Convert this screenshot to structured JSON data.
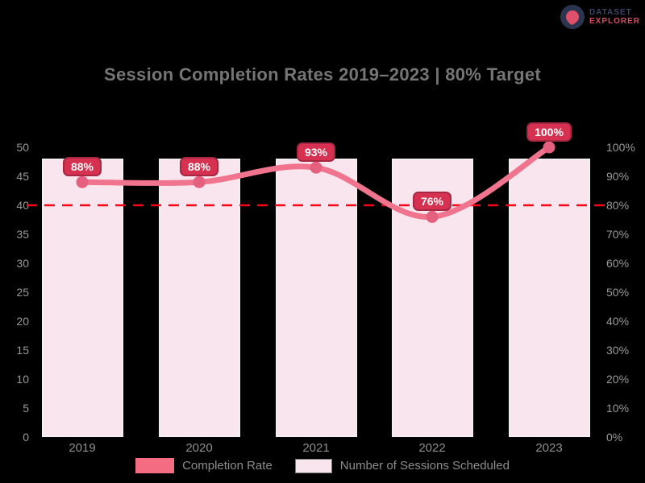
{
  "brand": {
    "line1": "DATASET",
    "line2": "EXPLORER"
  },
  "chart_data": {
    "type": "bar+line",
    "title": "Session Completion Rates 2019–2023 | 80% Target",
    "categories": [
      "2019",
      "2020",
      "2021",
      "2022",
      "2023"
    ],
    "series": [
      {
        "name": "Number of Sessions Scheduled",
        "type": "bar",
        "axis": "left",
        "values": [
          48,
          48,
          48,
          48,
          48
        ],
        "color": "#f9e5ed"
      },
      {
        "name": "Completion Rate",
        "type": "line",
        "axis": "right",
        "values": [
          88,
          88,
          93,
          76,
          100
        ],
        "labels": [
          "88%",
          "88%",
          "93%",
          "76%",
          "100%"
        ],
        "color": "#f1748e",
        "marker_color": "#e4607e"
      }
    ],
    "target_line": {
      "value": 80,
      "axis": "right",
      "color": "#ff0015",
      "style": "dashed"
    },
    "left_axis": {
      "min": 0,
      "max": 50,
      "step": 5,
      "ticks": [
        "50",
        "45",
        "40",
        "35",
        "30",
        "25",
        "20",
        "15",
        "10",
        "5",
        "0"
      ]
    },
    "right_axis": {
      "min": 0,
      "max": 100,
      "step": 10,
      "ticks": [
        "100%",
        "90%",
        "80%",
        "70%",
        "60%",
        "50%",
        "40%",
        "30%",
        "20%",
        "10%",
        "0%"
      ]
    },
    "legend_position": "bottom",
    "grid": false,
    "badge_color": "#d63150",
    "badge_border_color": "#a62742"
  },
  "legend": [
    {
      "label": "Completion Rate",
      "swatch": "solid",
      "color": "#f46c81"
    },
    {
      "label": "Number of Sessions Scheduled",
      "swatch": "outlined",
      "color": "#f9e5ed"
    }
  ]
}
